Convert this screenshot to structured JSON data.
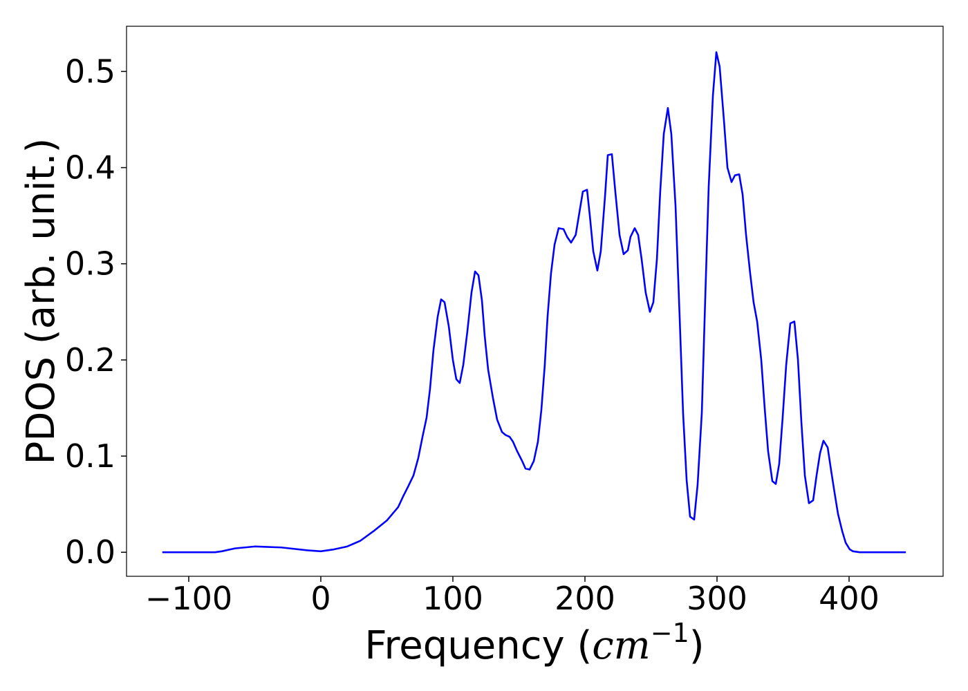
{
  "chart_data": {
    "type": "line",
    "x_label": {
      "text": "Frequency (",
      "italic": "cm",
      "superscript": "−1",
      "close": ")"
    },
    "y_label": "PDOS (arb. unit.)",
    "xlim": [
      -147.1,
      471.2
    ],
    "ylim": [
      -0.025,
      0.547
    ],
    "xticks": [
      {
        "value": -100,
        "label": "−100"
      },
      0,
      100,
      200,
      300,
      400
    ],
    "yticks": [
      {
        "value": 0,
        "label": "0.0"
      },
      0.1,
      0.2,
      0.3,
      0.4,
      0.5
    ],
    "grid": false,
    "series": [
      {
        "name": "PDOS",
        "color": "#0000ff",
        "x": [
          -120,
          -80,
          -75,
          -65,
          -50,
          -30,
          -10,
          0,
          10,
          20,
          30,
          40,
          50,
          58.6,
          62.3,
          66,
          70.2,
          73.8,
          77,
          80.1,
          82.7,
          85.3,
          88.5,
          91.1,
          93.7,
          96.9,
          100,
          102.6,
          105.2,
          107.9,
          111,
          114.1,
          116.8,
          119.4,
          122,
          124.1,
          126.7,
          130.4,
          133.5,
          137.2,
          139.8,
          143,
          145.5,
          148.7,
          152.4,
          155,
          158.1,
          161.3,
          164.4,
          167,
          169.6,
          171.7,
          174.3,
          177,
          180.1,
          183.8,
          186.5,
          189.5,
          193,
          198.4,
          201.6,
          203.7,
          206.3,
          209.4,
          212,
          215.2,
          217.3,
          220.4,
          223,
          226.2,
          229.3,
          232.5,
          234.5,
          237.7,
          240.3,
          242.9,
          246,
          249.2,
          251.8,
          254.5,
          257,
          259.7,
          262.8,
          265.4,
          268.6,
          271.7,
          274.3,
          277,
          279.6,
          282.7,
          285.3,
          288.5,
          291,
          293.7,
          296.9,
          299.5,
          302,
          305.2,
          307.9,
          311,
          313.6,
          316.8,
          319.4,
          322,
          325.1,
          327.7,
          330.4,
          333.5,
          336.1,
          338.7,
          341.9,
          344.5,
          347.1,
          349.7,
          352.4,
          355.5,
          358.6,
          361.3,
          363.9,
          366.5,
          369.6,
          372.8,
          375.4,
          378,
          380.6,
          383.8,
          386.4,
          389,
          391.6,
          394.8,
          397.4,
          400.5,
          403,
          408,
          443
        ],
        "values": [
          0,
          0,
          0.001,
          0.004,
          0.006,
          0.005,
          0.002,
          0.001,
          0.003,
          0.006,
          0.012,
          0.022,
          0.033,
          0.047,
          0.058,
          0.068,
          0.08,
          0.098,
          0.12,
          0.14,
          0.17,
          0.21,
          0.245,
          0.263,
          0.26,
          0.235,
          0.2,
          0.18,
          0.176,
          0.195,
          0.23,
          0.27,
          0.292,
          0.288,
          0.262,
          0.225,
          0.19,
          0.16,
          0.138,
          0.125,
          0.122,
          0.12,
          0.115,
          0.105,
          0.095,
          0.087,
          0.086,
          0.095,
          0.115,
          0.148,
          0.195,
          0.245,
          0.29,
          0.32,
          0.337,
          0.336,
          0.328,
          0.322,
          0.33,
          0.375,
          0.377,
          0.35,
          0.313,
          0.293,
          0.313,
          0.37,
          0.413,
          0.414,
          0.375,
          0.33,
          0.31,
          0.314,
          0.328,
          0.337,
          0.33,
          0.305,
          0.27,
          0.25,
          0.26,
          0.305,
          0.375,
          0.435,
          0.462,
          0.435,
          0.36,
          0.245,
          0.145,
          0.075,
          0.037,
          0.034,
          0.07,
          0.145,
          0.26,
          0.38,
          0.475,
          0.52,
          0.505,
          0.45,
          0.4,
          0.385,
          0.392,
          0.393,
          0.372,
          0.33,
          0.29,
          0.26,
          0.24,
          0.2,
          0.15,
          0.105,
          0.074,
          0.071,
          0.092,
          0.14,
          0.195,
          0.238,
          0.24,
          0.2,
          0.135,
          0.08,
          0.051,
          0.054,
          0.08,
          0.103,
          0.116,
          0.109,
          0.085,
          0.062,
          0.04,
          0.022,
          0.01,
          0.003,
          0.001,
          0,
          0
        ]
      }
    ]
  }
}
